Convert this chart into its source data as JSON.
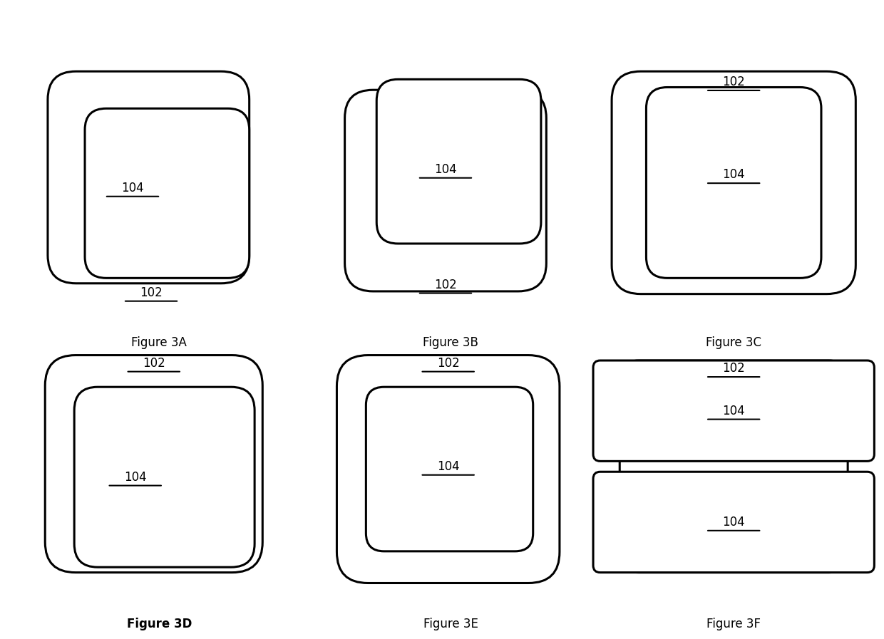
{
  "bg_color": "#ffffff",
  "line_width": 2.2,
  "label_fontsize": 12,
  "caption_fontsize": 12,
  "underline_lw": 1.5,
  "figures": {
    "3A": {
      "outer": [
        0.1,
        0.13,
        0.75,
        0.82,
        0.14
      ],
      "inner": [
        0.25,
        0.15,
        0.6,
        0.62,
        0.12
      ],
      "label_102": [
        0.47,
        0.095,
        "bottom"
      ],
      "label_104": [
        0.4,
        0.48
      ],
      "caption": "Figure 3A",
      "cap_bold": false
    },
    "3B": {
      "outer": [
        0.1,
        0.1,
        0.75,
        0.78,
        0.14
      ],
      "inner": [
        0.22,
        0.28,
        0.6,
        0.6,
        0.12
      ],
      "label_102": [
        0.47,
        0.13,
        "bottom"
      ],
      "label_104": [
        0.47,
        0.55
      ],
      "caption": "Figure 3B",
      "cap_bold": false
    },
    "3C": {
      "outer": [
        0.05,
        0.1,
        0.9,
        0.82,
        0.13
      ],
      "inner": [
        0.16,
        0.15,
        0.68,
        0.72,
        0.11
      ],
      "label_102": [
        0.5,
        0.88,
        "center"
      ],
      "label_104": [
        0.5,
        0.52
      ],
      "caption": "Figure 3C",
      "cap_bold": false
    },
    "3D": {
      "outer": [
        0.07,
        0.1,
        0.82,
        0.82,
        0.14
      ],
      "inner": [
        0.2,
        0.12,
        0.65,
        0.65,
        0.12
      ],
      "label_102": [
        0.48,
        0.89,
        "center"
      ],
      "label_104": [
        0.41,
        0.45
      ],
      "caption": "Figure 3D",
      "cap_bold": true
    },
    "3E": {
      "outer": [
        0.07,
        0.06,
        0.84,
        0.86,
        0.14
      ],
      "inner": [
        0.17,
        0.16,
        0.65,
        0.65,
        0.1
      ],
      "label_102": [
        0.49,
        0.89,
        "center"
      ],
      "label_104": [
        0.49,
        0.5
      ],
      "caption": "Figure 3E",
      "cap_bold": false
    },
    "3F": {
      "outer": [
        0.06,
        0.1,
        0.88,
        0.78,
        0.09
      ],
      "inner1": [
        0.01,
        0.52,
        0.98,
        0.4,
        0.07
      ],
      "inner2": [
        0.01,
        0.08,
        0.98,
        0.4,
        0.07
      ],
      "label_102": [
        0.5,
        0.87,
        "center"
      ],
      "label_104_1": [
        0.5,
        0.72
      ],
      "label_104_2": [
        0.5,
        0.29
      ],
      "caption": "Figure 3F",
      "cap_bold": false
    }
  }
}
